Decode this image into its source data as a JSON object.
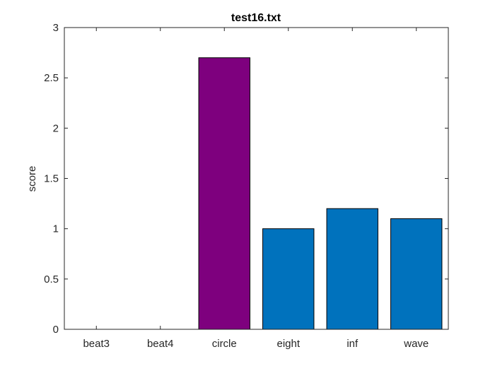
{
  "chart_data": {
    "type": "bar",
    "title": "test16.txt",
    "xlabel": "",
    "ylabel": "score",
    "categories": [
      "beat3",
      "beat4",
      "circle",
      "eight",
      "inf",
      "wave"
    ],
    "values": [
      0,
      0,
      2.7,
      1.0,
      1.2,
      1.1
    ],
    "bar_colors": [
      "#0072BD",
      "#0072BD",
      "#7E007E",
      "#0072BD",
      "#0072BD",
      "#0072BD"
    ],
    "ylim": [
      0,
      3
    ],
    "yticks": [
      0,
      0.5,
      1,
      1.5,
      2,
      2.5,
      3
    ],
    "ytick_labels": [
      "0",
      "0.5",
      "1",
      "1.5",
      "2",
      "2.5",
      "3"
    ],
    "grid": false,
    "legend": "none"
  }
}
